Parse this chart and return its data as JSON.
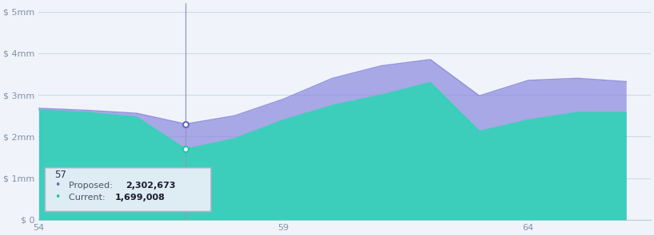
{
  "x": [
    54,
    55,
    56,
    57,
    58,
    59,
    60,
    61,
    62,
    63,
    64,
    65,
    66
  ],
  "proposed": [
    2680000,
    2630000,
    2560000,
    2302673,
    2500000,
    2900000,
    3400000,
    3700000,
    3850000,
    2980000,
    3350000,
    3400000,
    3320000
  ],
  "current": [
    2640000,
    2580000,
    2470000,
    1699008,
    1950000,
    2400000,
    2750000,
    3000000,
    3300000,
    2130000,
    2400000,
    2580000,
    2580000
  ],
  "proposed_color": "#8888dd",
  "proposed_alpha": 0.7,
  "current_color": "#2dd4b4",
  "current_alpha": 0.88,
  "bg_color": "#f0f4fa",
  "grid_color": "#d0d8e8",
  "axis_color": "#c0c8d8",
  "text_color": "#8090a8",
  "yticks": [
    0,
    1000000,
    2000000,
    3000000,
    4000000,
    5000000
  ],
  "ytick_labels": [
    "$ 0",
    "$ 1mm",
    "$ 2mm",
    "$ 3mm",
    "$ 4mm",
    "$ 5mm"
  ],
  "xticks": [
    54,
    59,
    64
  ],
  "xlim": [
    54,
    66.5
  ],
  "ylim": [
    0,
    5200000
  ],
  "tooltip_x": 57,
  "tooltip_proposed": "2,302,673",
  "tooltip_current": "1,699,008",
  "proposed_dot_color": "#6868bb",
  "current_dot_color": "#20c8a0",
  "vline_color": "#9098c0",
  "tooltip_bg": "#e8eef8",
  "tooltip_border": "#a8b4cc"
}
